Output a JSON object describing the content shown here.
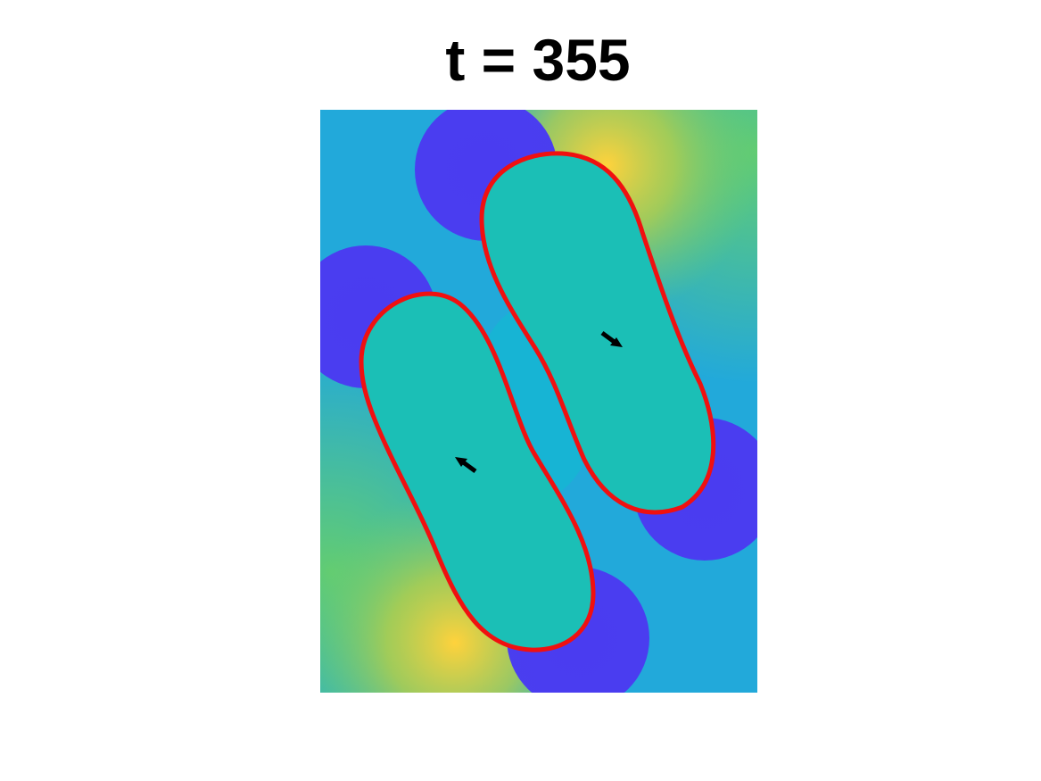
{
  "title": "t = 355"
}
